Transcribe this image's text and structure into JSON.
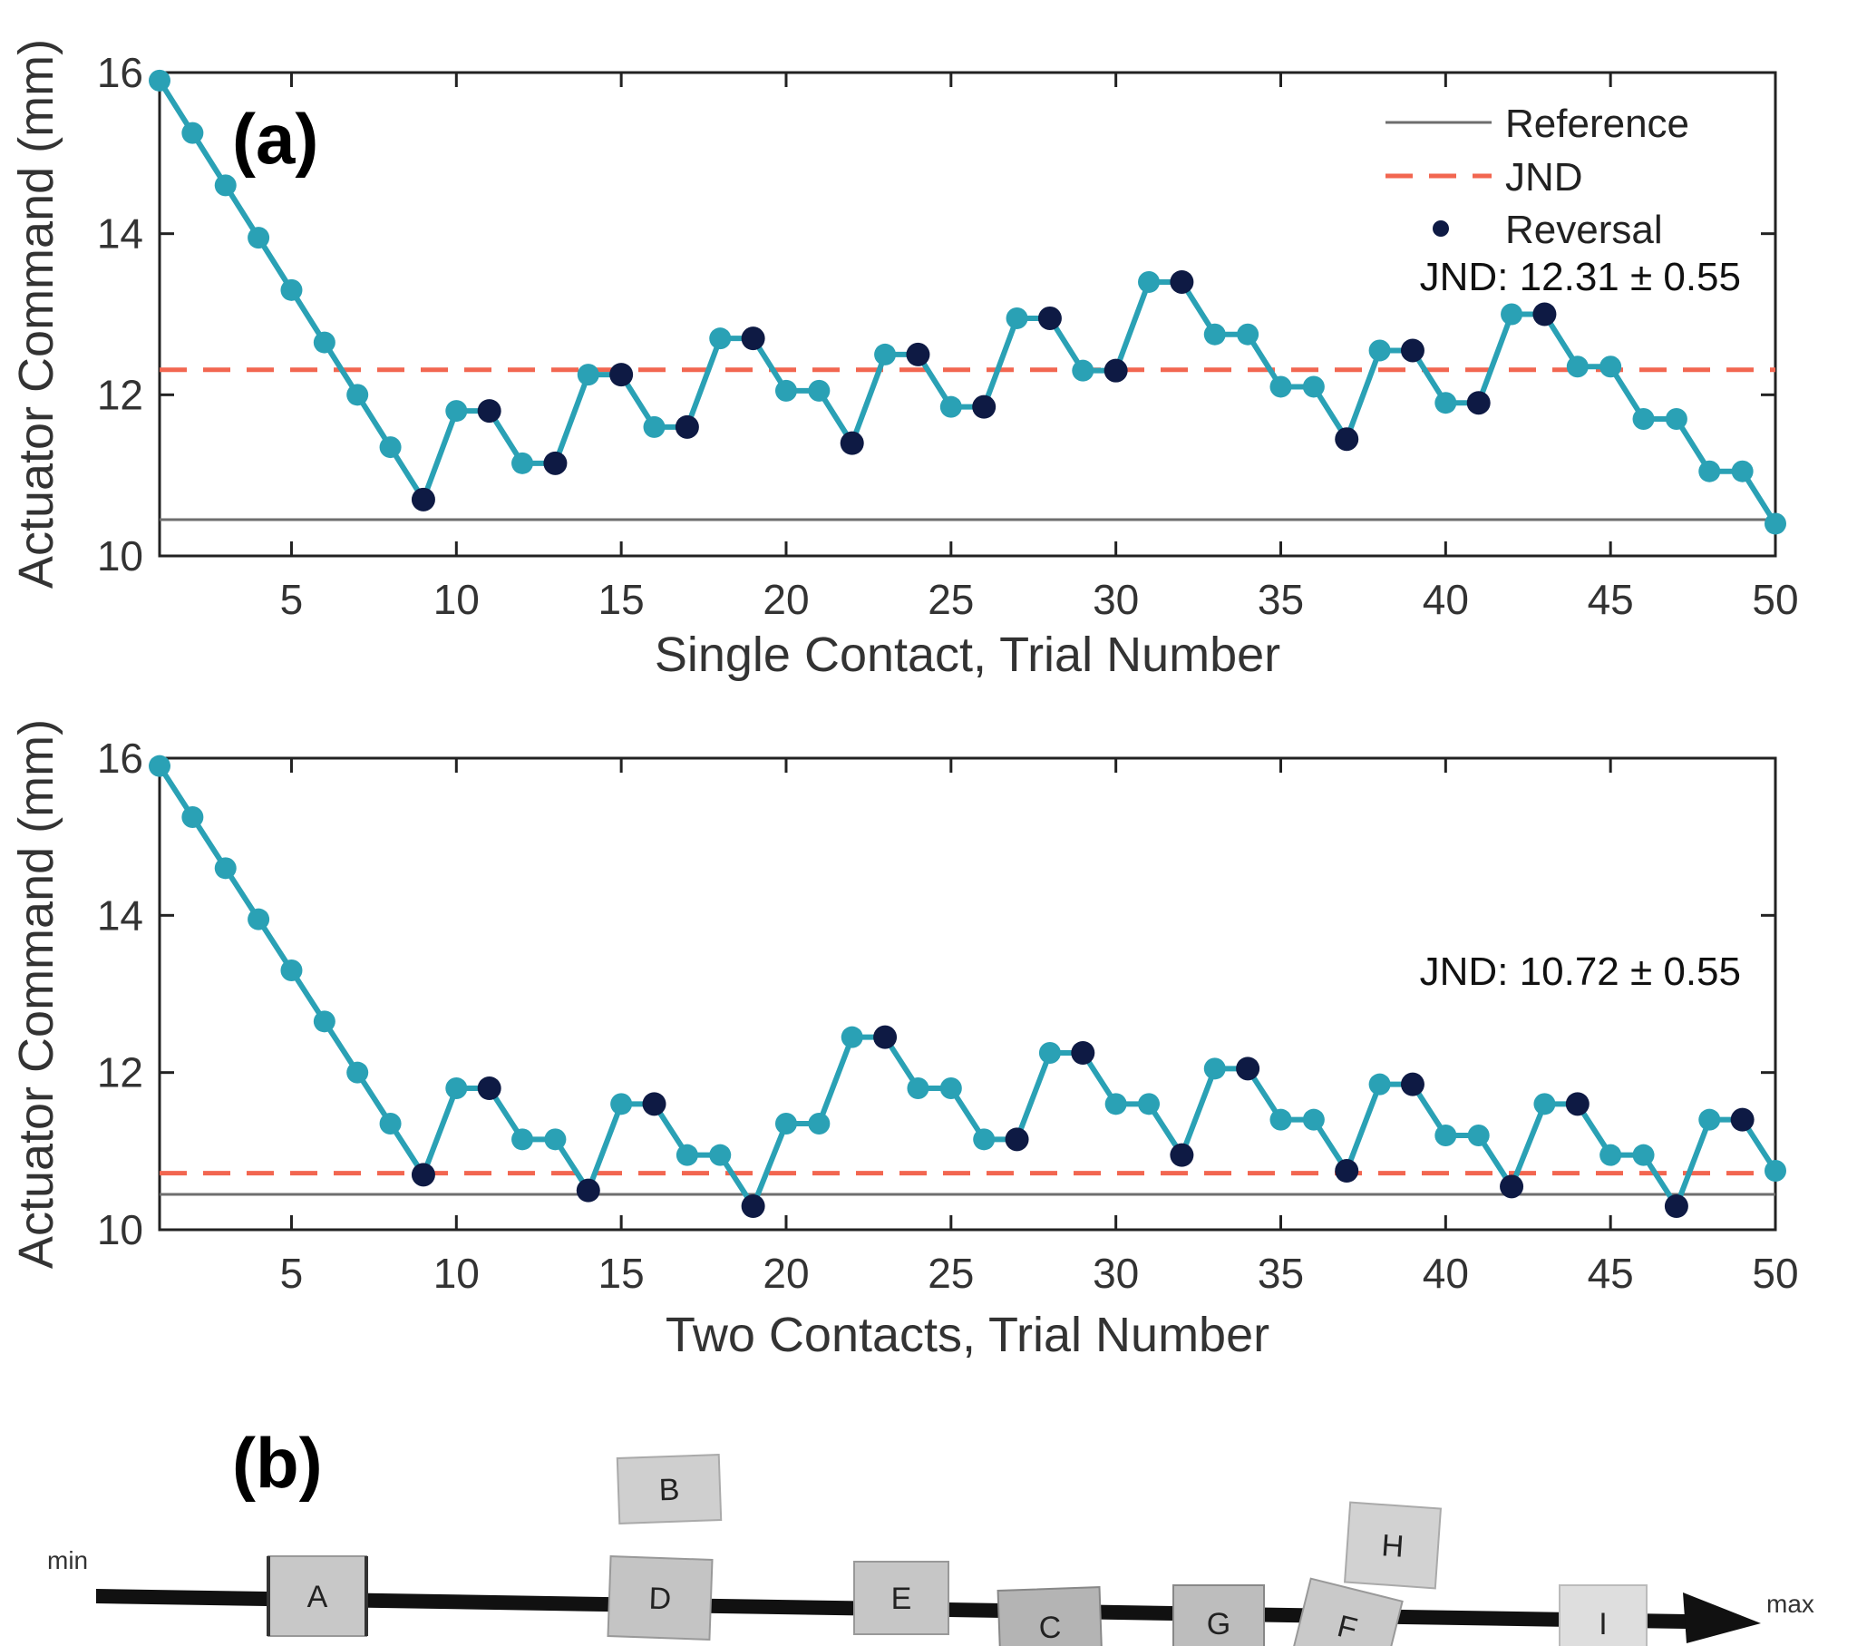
{
  "panel_a_label": "(a)",
  "panel_b_label": "(b)",
  "legend": {
    "reference": "Reference",
    "jnd": "JND",
    "reversal": "Reversal"
  },
  "colors": {
    "line": "#2aa1b5",
    "reversal": "#0e1a44",
    "jnd": "#f26650",
    "reference": "#6e6e6e"
  },
  "chart_data": [
    {
      "type": "line",
      "xlabel": "Single Contact, Trial Number",
      "ylabel": "Actuator Command (mm)",
      "xlim": [
        1,
        50
      ],
      "ylim": [
        10,
        16
      ],
      "xticks": [
        5,
        10,
        15,
        20,
        25,
        30,
        35,
        40,
        45,
        50
      ],
      "yticks": [
        10,
        12,
        14,
        16
      ],
      "reference": 10.45,
      "jnd": 12.31,
      "annotation": "JND: 12.31 ± 0.55",
      "x": [
        1,
        2,
        3,
        4,
        5,
        6,
        7,
        8,
        9,
        10,
        11,
        12,
        13,
        14,
        15,
        16,
        17,
        18,
        19,
        20,
        21,
        22,
        23,
        24,
        25,
        26,
        27,
        28,
        29,
        30,
        31,
        32,
        33,
        34,
        35,
        36,
        37,
        38,
        39,
        40,
        41,
        42,
        43,
        44,
        45,
        46,
        47,
        48,
        49,
        50
      ],
      "values": [
        15.9,
        15.25,
        14.6,
        13.95,
        13.3,
        12.65,
        12.0,
        11.35,
        10.7,
        11.8,
        11.8,
        11.15,
        11.15,
        12.25,
        12.25,
        11.6,
        11.6,
        12.7,
        12.7,
        12.05,
        12.05,
        11.4,
        12.5,
        12.5,
        11.85,
        11.85,
        12.95,
        12.95,
        12.3,
        12.3,
        13.4,
        13.4,
        12.75,
        12.75,
        12.1,
        12.1,
        11.45,
        12.55,
        12.55,
        11.9,
        11.9,
        13.0,
        13.0,
        12.35,
        12.35,
        11.7,
        11.7,
        11.05,
        11.05,
        10.4
      ],
      "reversals": [
        9,
        11,
        13,
        15,
        17,
        19,
        22,
        24,
        26,
        28,
        30,
        32,
        37,
        39,
        41,
        43
      ]
    },
    {
      "type": "line",
      "xlabel": "Two Contacts, Trial Number",
      "ylabel": "Actuator Command (mm)",
      "xlim": [
        1,
        50
      ],
      "ylim": [
        10,
        16
      ],
      "xticks": [
        5,
        10,
        15,
        20,
        25,
        30,
        35,
        40,
        45,
        50
      ],
      "yticks": [
        10,
        12,
        14,
        16
      ],
      "reference": 10.45,
      "jnd": 10.72,
      "annotation": "JND: 10.72 ± 0.55",
      "x": [
        1,
        2,
        3,
        4,
        5,
        6,
        7,
        8,
        9,
        10,
        11,
        12,
        13,
        14,
        15,
        16,
        17,
        18,
        19,
        20,
        21,
        22,
        23,
        24,
        25,
        26,
        27,
        28,
        29,
        30,
        31,
        32,
        33,
        34,
        35,
        36,
        37,
        38,
        39,
        40,
        41,
        42,
        43,
        44,
        45,
        46,
        47,
        48,
        49,
        50
      ],
      "values": [
        15.9,
        15.25,
        14.6,
        13.95,
        13.3,
        12.65,
        12.0,
        11.35,
        10.7,
        11.8,
        11.8,
        11.15,
        11.15,
        10.5,
        11.6,
        11.6,
        10.95,
        10.95,
        10.3,
        11.35,
        11.35,
        12.45,
        12.45,
        11.8,
        11.8,
        11.15,
        11.15,
        12.25,
        12.25,
        11.6,
        11.6,
        10.95,
        12.05,
        12.05,
        11.4,
        11.4,
        10.75,
        11.85,
        11.85,
        11.2,
        11.2,
        10.55,
        11.6,
        11.6,
        10.95,
        10.95,
        10.3,
        11.4,
        11.4,
        10.75
      ],
      "reversals": [
        9,
        11,
        14,
        16,
        19,
        23,
        27,
        29,
        32,
        34,
        37,
        39,
        42,
        44,
        47,
        49
      ]
    }
  ],
  "scale": {
    "min_label": "min",
    "max_label": "max",
    "cards": [
      "A",
      "B",
      "D",
      "E",
      "C",
      "G",
      "H",
      "F",
      "I"
    ]
  }
}
